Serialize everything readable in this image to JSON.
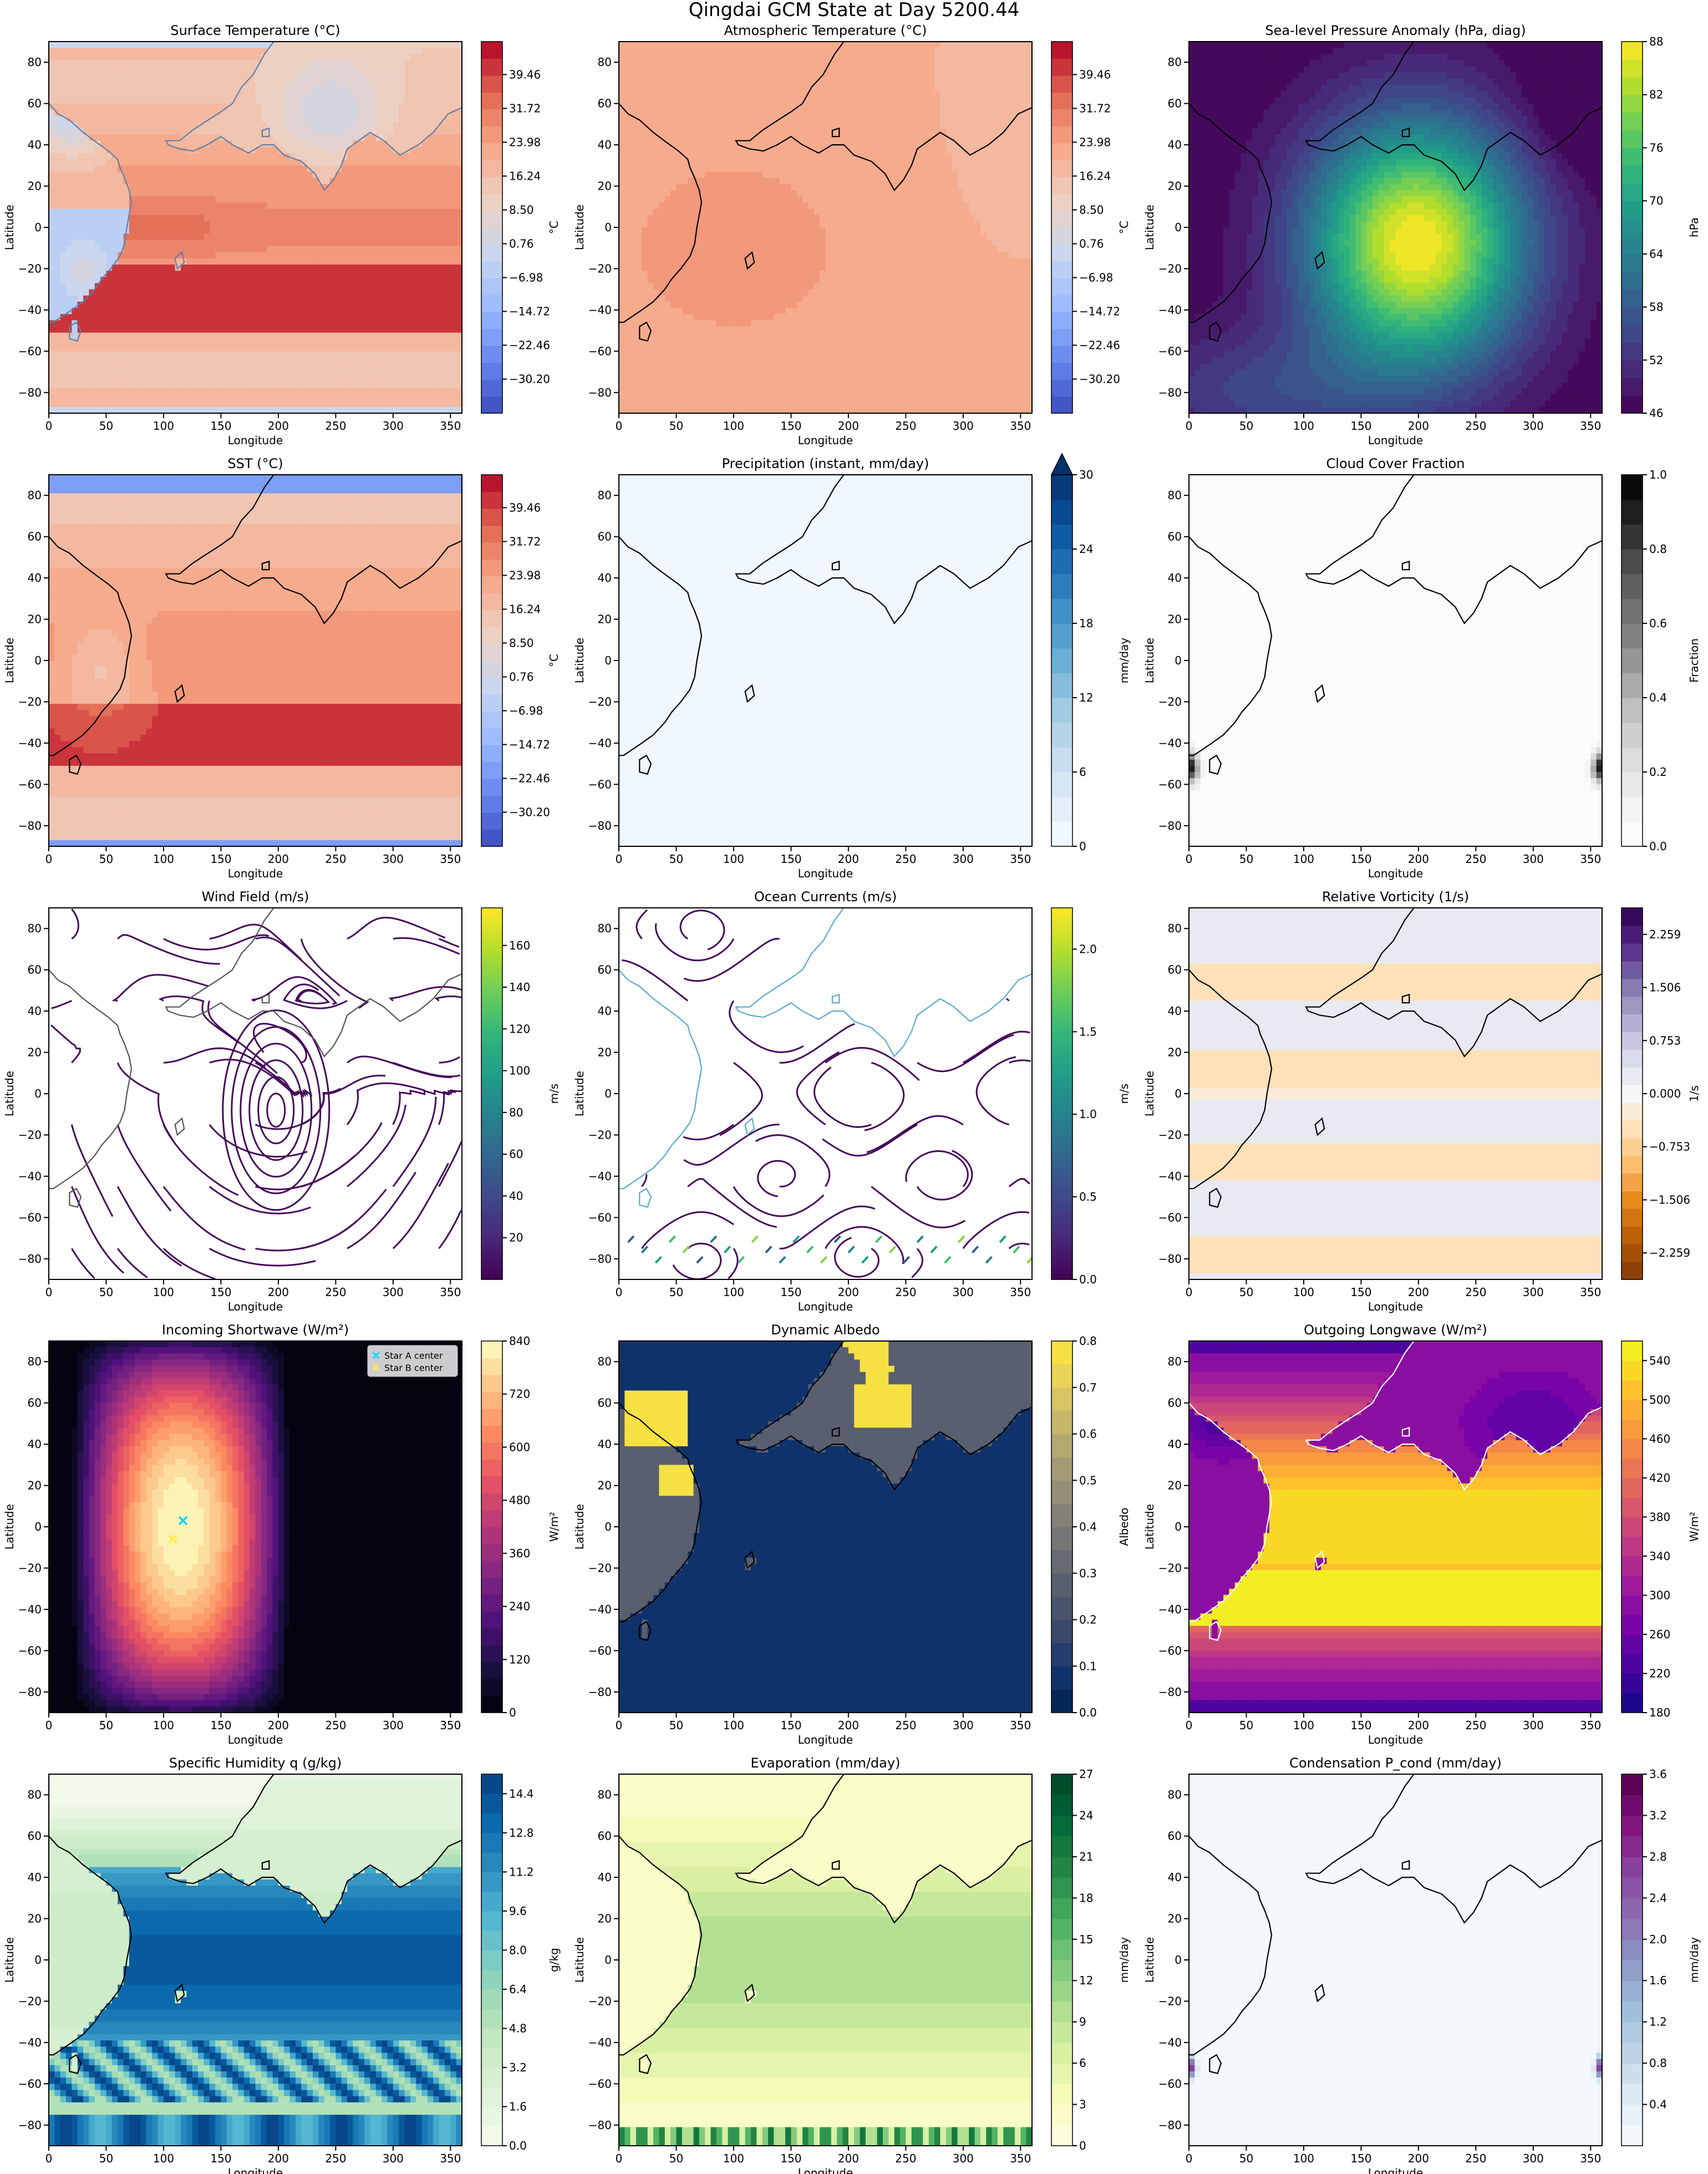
{
  "figure": {
    "title": "Qingdai GCM State at Day 5200.44"
  },
  "chart_data": [
    {
      "id": "p1",
      "type": "heatmap",
      "title": "Surface Temperature (°C)",
      "xlabel": "Longitude",
      "ylabel": "Latitude",
      "xlim": [
        0,
        360
      ],
      "ylim": [
        -90,
        90
      ],
      "xticks": [
        0,
        50,
        100,
        150,
        200,
        250,
        300,
        350
      ],
      "yticks": [
        -80,
        -60,
        -40,
        -20,
        0,
        20,
        40,
        60,
        80
      ],
      "field": "surface_temp",
      "colormap": "coolwarm",
      "coastline_color": "#5f7fa8",
      "colorbar": {
        "label": "°C",
        "range": [
          -38,
          47
        ],
        "ticks": [
          -30.2,
          -22.46,
          -14.72,
          -6.98,
          0.76,
          8.5,
          16.24,
          23.98,
          31.72,
          39.46
        ],
        "tick_labels": [
          "−30.20",
          "−22.46",
          "−14.72",
          "−6.98",
          "0.76",
          "8.50",
          "16.24",
          "23.98",
          "31.72",
          "39.46"
        ],
        "levels": 22,
        "extend": "neither"
      }
    },
    {
      "id": "p2",
      "type": "heatmap",
      "title": "Atmospheric Temperature (°C)",
      "xlabel": "Longitude",
      "ylabel": "Latitude",
      "xlim": [
        0,
        360
      ],
      "ylim": [
        -90,
        90
      ],
      "xticks": [
        0,
        50,
        100,
        150,
        200,
        250,
        300,
        350
      ],
      "yticks": [
        -80,
        -60,
        -40,
        -20,
        0,
        20,
        40,
        60,
        80
      ],
      "field": "atmos_temp",
      "colormap": "coolwarm",
      "coastline_color": "#000000",
      "colorbar": {
        "label": "°C",
        "range": [
          -38,
          47
        ],
        "ticks": [
          -30.2,
          -22.46,
          -14.72,
          -6.98,
          0.76,
          8.5,
          16.24,
          23.98,
          31.72,
          39.46
        ],
        "tick_labels": [
          "−30.20",
          "−22.46",
          "−14.72",
          "−6.98",
          "0.76",
          "8.50",
          "16.24",
          "23.98",
          "31.72",
          "39.46"
        ],
        "levels": 22,
        "extend": "neither"
      }
    },
    {
      "id": "p3",
      "type": "heatmap",
      "title": "Sea-level Pressure Anomaly (hPa, diag)",
      "xlabel": "Longitude",
      "ylabel": "Latitude",
      "xlim": [
        0,
        360
      ],
      "ylim": [
        -90,
        90
      ],
      "xticks": [
        0,
        50,
        100,
        150,
        200,
        250,
        300,
        350
      ],
      "yticks": [
        -80,
        -60,
        -40,
        -20,
        0,
        20,
        40,
        60,
        80
      ],
      "field": "slp",
      "colormap": "viridis",
      "coastline_color": "#000000",
      "colorbar": {
        "label": "hPa",
        "range": [
          46,
          88
        ],
        "ticks": [
          46,
          52,
          58,
          64,
          70,
          76,
          82,
          88
        ],
        "tick_labels": [
          "46",
          "52",
          "58",
          "64",
          "70",
          "76",
          "82",
          "88"
        ],
        "levels": 21,
        "extend": "neither"
      }
    },
    {
      "id": "p4",
      "type": "heatmap",
      "title": "SST (°C)",
      "xlabel": "Longitude",
      "ylabel": "Latitude",
      "xlim": [
        0,
        360
      ],
      "ylim": [
        -90,
        90
      ],
      "xticks": [
        0,
        50,
        100,
        150,
        200,
        250,
        300,
        350
      ],
      "yticks": [
        -80,
        -60,
        -40,
        -20,
        0,
        20,
        40,
        60,
        80
      ],
      "field": "sst",
      "colormap": "coolwarm",
      "coastline_color": "#000000",
      "colorbar": {
        "label": "°C",
        "range": [
          -38,
          47
        ],
        "ticks": [
          -30.2,
          -22.46,
          -14.72,
          -6.98,
          0.76,
          8.5,
          16.24,
          23.98,
          31.72,
          39.46
        ],
        "tick_labels": [
          "−30.20",
          "−22.46",
          "−14.72",
          "−6.98",
          "0.76",
          "8.50",
          "16.24",
          "23.98",
          "31.72",
          "39.46"
        ],
        "levels": 22,
        "extend": "neither"
      }
    },
    {
      "id": "p5",
      "type": "heatmap",
      "title": "Precipitation (instant, mm/day)",
      "xlabel": "Longitude",
      "ylabel": "Latitude",
      "xlim": [
        0,
        360
      ],
      "ylim": [
        -90,
        90
      ],
      "xticks": [
        0,
        50,
        100,
        150,
        200,
        250,
        300,
        350
      ],
      "yticks": [
        -80,
        -60,
        -40,
        -20,
        0,
        20,
        40,
        60,
        80
      ],
      "field": "precip",
      "colormap": "blues",
      "coastline_color": "#000000",
      "colorbar": {
        "label": "mm/day",
        "range": [
          0,
          30
        ],
        "ticks": [
          0,
          6,
          12,
          18,
          24,
          30
        ],
        "tick_labels": [
          "0",
          "6",
          "12",
          "18",
          "24",
          "30"
        ],
        "levels": 15,
        "extend": "max"
      }
    },
    {
      "id": "p6",
      "type": "heatmap",
      "title": "Cloud Cover Fraction",
      "xlabel": "Longitude",
      "ylabel": "Latitude",
      "xlim": [
        0,
        360
      ],
      "ylim": [
        -90,
        90
      ],
      "xticks": [
        0,
        50,
        100,
        150,
        200,
        250,
        300,
        350
      ],
      "yticks": [
        -80,
        -60,
        -40,
        -20,
        0,
        20,
        40,
        60,
        80
      ],
      "field": "cloud",
      "colormap": "greys",
      "coastline_color": "#000000",
      "colorbar": {
        "label": "Fraction",
        "range": [
          0,
          1
        ],
        "ticks": [
          0.0,
          0.2,
          0.4,
          0.6,
          0.8,
          1.0
        ],
        "tick_labels": [
          "0.0",
          "0.2",
          "0.4",
          "0.6",
          "0.8",
          "1.0"
        ],
        "levels": 15,
        "extend": "neither"
      }
    },
    {
      "id": "p7",
      "type": "streamplot",
      "title": "Wind Field (m/s)",
      "xlabel": "Longitude",
      "ylabel": "Latitude",
      "xlim": [
        0,
        360
      ],
      "ylim": [
        -90,
        90
      ],
      "xticks": [
        0,
        50,
        100,
        150,
        200,
        250,
        300,
        350
      ],
      "yticks": [
        -80,
        -60,
        -40,
        -20,
        0,
        20,
        40,
        60,
        80
      ],
      "field": "wind",
      "colormap": "viridis",
      "background": "#ffffff",
      "coastline_color": "#555555",
      "colorbar": {
        "label": "m/s",
        "range": [
          0,
          178
        ],
        "ticks": [
          20,
          40,
          60,
          80,
          100,
          120,
          140,
          160
        ],
        "tick_labels": [
          "20",
          "40",
          "60",
          "80",
          "100",
          "120",
          "140",
          "160"
        ],
        "levels": 0,
        "extend": "neither"
      }
    },
    {
      "id": "p8",
      "type": "streamplot",
      "title": "Ocean Currents (m/s)",
      "xlabel": "Longitude",
      "ylabel": "Latitude",
      "xlim": [
        0,
        360
      ],
      "ylim": [
        -90,
        90
      ],
      "xticks": [
        0,
        50,
        100,
        150,
        200,
        250,
        300,
        350
      ],
      "yticks": [
        -80,
        -60,
        -40,
        -20,
        0,
        20,
        40,
        60,
        80
      ],
      "field": "ocean",
      "colormap": "viridis",
      "background": "#ffffff",
      "coastline_color": "#5aa9d6",
      "colorbar": {
        "label": "m/s",
        "range": [
          0,
          2.25
        ],
        "ticks": [
          0.0,
          0.5,
          1.0,
          1.5,
          2.0
        ],
        "tick_labels": [
          "0.0",
          "0.5",
          "1.0",
          "1.5",
          "2.0"
        ],
        "levels": 0,
        "extend": "neither"
      }
    },
    {
      "id": "p9",
      "type": "heatmap",
      "title": "Relative Vorticity (1/s)",
      "xlabel": "Longitude",
      "ylabel": "Latitude",
      "xlim": [
        0,
        360
      ],
      "ylim": [
        -90,
        90
      ],
      "xticks": [
        0,
        50,
        100,
        150,
        200,
        250,
        300,
        350
      ],
      "yticks": [
        -80,
        -60,
        -40,
        -20,
        0,
        20,
        40,
        60,
        80
      ],
      "field": "vort",
      "colormap": "puor",
      "coastline_color": "#000000",
      "colorbar": {
        "label": "1/s",
        "range": [
          -2.635,
          2.635
        ],
        "ticks": [
          -2.259,
          -1.506,
          -0.753,
          0.0,
          0.753,
          1.506,
          2.259
        ],
        "tick_labels": [
          "−2.259",
          "−1.506",
          "−0.753",
          "0.000",
          "0.753",
          "1.506",
          "2.259"
        ],
        "levels": 21,
        "extend": "neither"
      }
    },
    {
      "id": "p10",
      "type": "heatmap",
      "title": "Incoming Shortwave (W/m²)",
      "xlabel": "Longitude",
      "ylabel": "Latitude",
      "xlim": [
        0,
        360
      ],
      "ylim": [
        -90,
        90
      ],
      "xticks": [
        0,
        50,
        100,
        150,
        200,
        250,
        300,
        350
      ],
      "yticks": [
        -80,
        -60,
        -40,
        -20,
        0,
        20,
        40,
        60,
        80
      ],
      "field": "isw",
      "colormap": "magma",
      "coastline_color": "none",
      "colorbar": {
        "label": "W/m²",
        "range": [
          0,
          840
        ],
        "ticks": [
          0,
          120,
          240,
          360,
          480,
          600,
          720,
          840
        ],
        "tick_labels": [
          "0",
          "120",
          "240",
          "360",
          "480",
          "600",
          "720",
          "840"
        ],
        "levels": 22,
        "extend": "neither"
      },
      "markers": [
        {
          "name": "Star A center",
          "lon": 117,
          "lat": 3,
          "color": "#00d5ff",
          "marker": "x"
        },
        {
          "name": "Star B center",
          "lon": 108,
          "lat": -6,
          "color": "#ffee44",
          "marker": "x"
        }
      ],
      "legend": "top-right"
    },
    {
      "id": "p11",
      "type": "heatmap",
      "title": "Dynamic Albedo",
      "xlabel": "Longitude",
      "ylabel": "Latitude",
      "xlim": [
        0,
        360
      ],
      "ylim": [
        -90,
        90
      ],
      "xticks": [
        0,
        50,
        100,
        150,
        200,
        250,
        300,
        350
      ],
      "yticks": [
        -80,
        -60,
        -40,
        -20,
        0,
        20,
        40,
        60,
        80
      ],
      "field": "albedo",
      "colormap": "cividis",
      "coastline_color": "#000000",
      "colorbar": {
        "label": "Albedo",
        "range": [
          0,
          0.8
        ],
        "ticks": [
          0.0,
          0.1,
          0.2,
          0.3,
          0.4,
          0.5,
          0.6,
          0.7,
          0.8
        ],
        "tick_labels": [
          "0.0",
          "0.1",
          "0.2",
          "0.3",
          "0.4",
          "0.5",
          "0.6",
          "0.7",
          "0.8"
        ],
        "levels": 16,
        "extend": "neither"
      }
    },
    {
      "id": "p12",
      "type": "heatmap",
      "title": "Outgoing Longwave (W/m²)",
      "xlabel": "Longitude",
      "ylabel": "Latitude",
      "xlim": [
        0,
        360
      ],
      "ylim": [
        -90,
        90
      ],
      "xticks": [
        0,
        50,
        100,
        150,
        200,
        250,
        300,
        350
      ],
      "yticks": [
        -80,
        -60,
        -40,
        -20,
        0,
        20,
        40,
        60,
        80
      ],
      "field": "olr",
      "colormap": "plasma",
      "coastline_color": "#ffffff",
      "colorbar": {
        "label": "W/m²",
        "range": [
          180,
          560
        ],
        "ticks": [
          180,
          220,
          260,
          300,
          340,
          380,
          420,
          460,
          500,
          540
        ],
        "tick_labels": [
          "180",
          "220",
          "260",
          "300",
          "340",
          "380",
          "420",
          "460",
          "500",
          "540"
        ],
        "levels": 19,
        "extend": "neither"
      }
    },
    {
      "id": "p13",
      "type": "heatmap",
      "title": "Specific Humidity q (g/kg)",
      "xlabel": "Longitude",
      "ylabel": "Latitude",
      "xlim": [
        0,
        360
      ],
      "ylim": [
        -90,
        90
      ],
      "xticks": [
        0,
        50,
        100,
        150,
        200,
        250,
        300,
        350
      ],
      "yticks": [
        -80,
        -60,
        -40,
        -20,
        0,
        20,
        40,
        60,
        80
      ],
      "field": "humid",
      "colormap": "gnbu",
      "coastline_color": "#000000",
      "colorbar": {
        "label": "g/kg",
        "range": [
          0,
          15.2
        ],
        "ticks": [
          0.0,
          1.6,
          3.2,
          4.8,
          6.4,
          8.0,
          9.6,
          11.2,
          12.8,
          14.4
        ],
        "tick_labels": [
          "0.0",
          "1.6",
          "3.2",
          "4.8",
          "6.4",
          "8.0",
          "9.6",
          "11.2",
          "12.8",
          "14.4"
        ],
        "levels": 19,
        "extend": "neither"
      }
    },
    {
      "id": "p14",
      "type": "heatmap",
      "title": "Evaporation (mm/day)",
      "xlabel": "Longitude",
      "ylabel": "Latitude",
      "xlim": [
        0,
        360
      ],
      "ylim": [
        -90,
        90
      ],
      "xticks": [
        0,
        50,
        100,
        150,
        200,
        250,
        300,
        350
      ],
      "yticks": [
        -80,
        -60,
        -40,
        -20,
        0,
        20,
        40,
        60,
        80
      ],
      "field": "evap",
      "colormap": "ylgn",
      "coastline_color": "#000000",
      "colorbar": {
        "label": "mm/day",
        "range": [
          0,
          27
        ],
        "ticks": [
          0,
          3,
          6,
          9,
          12,
          15,
          18,
          21,
          24,
          27
        ],
        "tick_labels": [
          "0",
          "3",
          "6",
          "9",
          "12",
          "15",
          "18",
          "21",
          "24",
          "27"
        ],
        "levels": 18,
        "extend": "neither"
      }
    },
    {
      "id": "p15",
      "type": "heatmap",
      "title": "Condensation P_cond (mm/day)",
      "xlabel": "Longitude",
      "ylabel": "Latitude",
      "xlim": [
        0,
        360
      ],
      "ylim": [
        -90,
        90
      ],
      "xticks": [
        0,
        50,
        100,
        150,
        200,
        250,
        300,
        350
      ],
      "yticks": [
        -80,
        -60,
        -40,
        -20,
        0,
        20,
        40,
        60,
        80
      ],
      "field": "cond",
      "colormap": "bupu",
      "coastline_color": "#000000",
      "colorbar": {
        "label": "mm/day",
        "range": [
          0,
          3.6
        ],
        "ticks": [
          0.4,
          0.8,
          1.2,
          1.6,
          2.0,
          2.4,
          2.8,
          3.2,
          3.6
        ],
        "tick_labels": [
          "0.4",
          "0.8",
          "1.2",
          "1.6",
          "2.0",
          "2.4",
          "2.8",
          "3.2",
          "3.6"
        ],
        "levels": 18,
        "extend": "neither"
      }
    }
  ]
}
